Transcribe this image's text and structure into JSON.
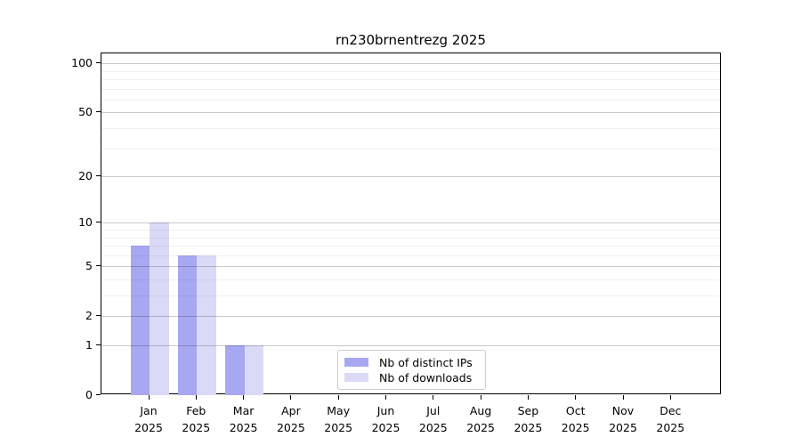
{
  "chart_data": {
    "type": "bar",
    "title": "rn230brnentrezg 2025",
    "categories": [
      "Jan",
      "Feb",
      "Mar",
      "Apr",
      "May",
      "Jun",
      "Jul",
      "Aug",
      "Sep",
      "Oct",
      "Nov",
      "Dec"
    ],
    "x_tick_year": "2025",
    "series": [
      {
        "name": "Nb of distinct IPs",
        "color": "#a7a7f2",
        "values": [
          7,
          6,
          1,
          0,
          0,
          0,
          0,
          0,
          0,
          0,
          0,
          0
        ]
      },
      {
        "name": "Nb of downloads",
        "color": "#dadaf6",
        "values": [
          10,
          6,
          1,
          0,
          0,
          0,
          0,
          0,
          0,
          0,
          0,
          0
        ]
      }
    ],
    "xlabel": "",
    "ylabel": "",
    "yscale": "log1p",
    "ylim": [
      0,
      115
    ],
    "y_major_ticks": [
      0,
      1,
      2,
      5,
      10,
      20,
      50,
      100
    ],
    "y_minor_gridlines": [
      3,
      4,
      6,
      7,
      8,
      9,
      30,
      40,
      60,
      70,
      80,
      90
    ],
    "grid": true,
    "legend_position": "lower center",
    "colors": {
      "grid_major": "#c9c9c9",
      "grid_minor": "#f0f0f0",
      "axis": "#000000",
      "text": "#000000",
      "background": "#ffffff"
    }
  }
}
